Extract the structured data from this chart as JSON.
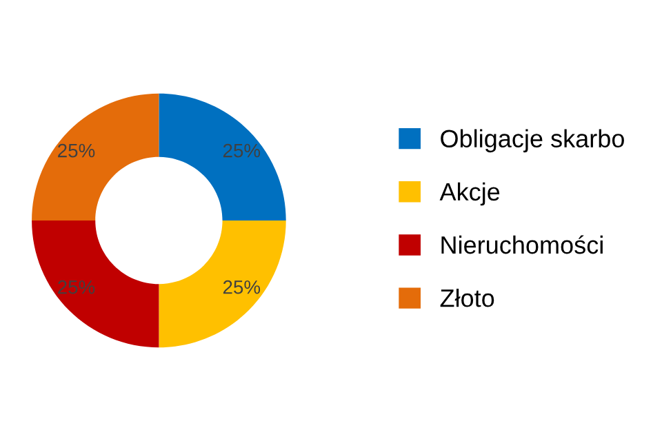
{
  "chart_data": {
    "type": "donut",
    "categories": [
      "Obligacje skarbo",
      "Akcje",
      "Nieruchomości",
      "Złoto"
    ],
    "values": [
      25,
      25,
      25,
      25
    ],
    "colors": [
      "#0070c0",
      "#ffc000",
      "#c00000",
      "#e46c0a"
    ],
    "value_labels": [
      "25%",
      "25%",
      "25%",
      "25%"
    ],
    "legend": "right"
  }
}
